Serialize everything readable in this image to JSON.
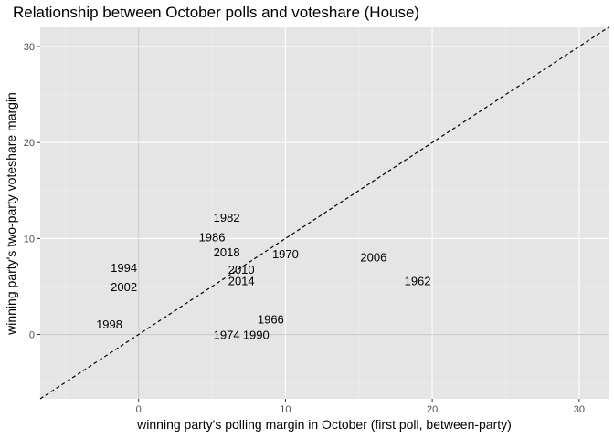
{
  "chart_data": {
    "type": "scatter",
    "title": "Relationship between October polls and voteshare (House)",
    "xlabel": "winning party's polling margin in October (first poll, between-party)",
    "ylabel": "winning party's two-party voteshare margin",
    "xlim": [
      -6.7,
      32
    ],
    "ylim": [
      -6.7,
      32
    ],
    "x_ticks": [
      0,
      10,
      20,
      30
    ],
    "y_ticks": [
      0,
      10,
      20,
      30
    ],
    "grid": true,
    "reference_lines": [
      {
        "type": "diagonal",
        "slope": 1,
        "intercept": 0,
        "style": "dashed"
      }
    ],
    "points": [
      {
        "label": "1962",
        "x": 19,
        "y": 5.6
      },
      {
        "label": "1966",
        "x": 9,
        "y": 1.6
      },
      {
        "label": "1970",
        "x": 10,
        "y": 8.4
      },
      {
        "label": "1974",
        "x": 6,
        "y": 0
      },
      {
        "label": "1982",
        "x": 6,
        "y": 12.2
      },
      {
        "label": "1986",
        "x": 5,
        "y": 10.2
      },
      {
        "label": "1990",
        "x": 8,
        "y": 0
      },
      {
        "label": "1994",
        "x": -1,
        "y": 7
      },
      {
        "label": "1998",
        "x": -2,
        "y": 1.1
      },
      {
        "label": "2002",
        "x": -1,
        "y": 5
      },
      {
        "label": "2006",
        "x": 16,
        "y": 8.1
      },
      {
        "label": "2010",
        "x": 7,
        "y": 6.8
      },
      {
        "label": "2014",
        "x": 7,
        "y": 5.6
      },
      {
        "label": "2018",
        "x": 6,
        "y": 8.6
      }
    ]
  },
  "colors": {
    "panel_background": "#e5e5e5",
    "major_grid": "#ffffff",
    "zero_line": "#cccccc",
    "reference_line": "#000000",
    "text": "#000000",
    "tick_text": "#4d4d4d"
  }
}
